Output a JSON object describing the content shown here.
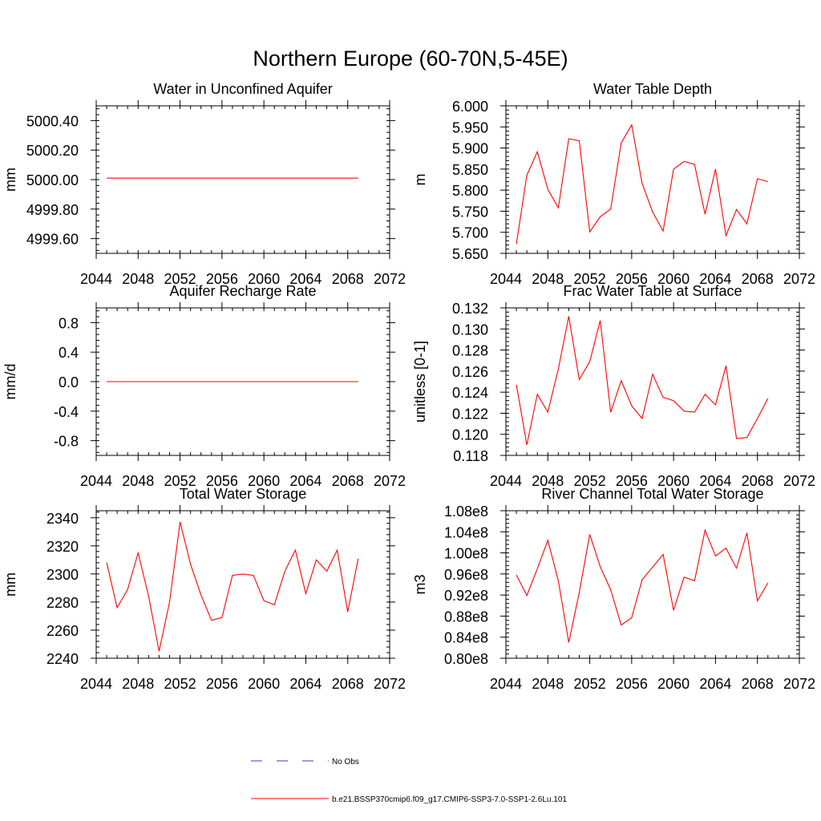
{
  "figure": {
    "title": "Northern Europe (60-70N,5-45E)"
  },
  "legend": {
    "obs_label": "No Obs",
    "model_label": "b.e21.BSSP370cmip6.f09_g17.CMIP6-SSP3-7.0-SSP1-2.6Lu.101",
    "obs_color": "#3b3bbf",
    "model_color": "#ff0000"
  },
  "chart_data": [
    {
      "type": "line",
      "title": "Water in Unconfined Aquifer",
      "ylabel": "mm",
      "xlim": [
        2044,
        2072
      ],
      "xticks": [
        2044,
        2048,
        2052,
        2056,
        2060,
        2064,
        2068,
        2072
      ],
      "ylim": [
        4999.5,
        5000.5
      ],
      "yticks": [
        4999.6,
        4999.8,
        5000.0,
        5000.2,
        5000.4
      ],
      "ytick_labels": [
        "4999.60",
        "4999.80",
        "5000.00",
        "5000.20",
        "5000.40"
      ],
      "x": [
        2045,
        2046,
        2047,
        2048,
        2049,
        2050,
        2051,
        2052,
        2053,
        2054,
        2055,
        2056,
        2057,
        2058,
        2059,
        2060,
        2061,
        2062,
        2063,
        2064,
        2065,
        2066,
        2067,
        2068,
        2069
      ],
      "values": [
        5000.01,
        5000.01,
        5000.01,
        5000.01,
        5000.01,
        5000.01,
        5000.01,
        5000.01,
        5000.01,
        5000.01,
        5000.01,
        5000.01,
        5000.01,
        5000.01,
        5000.01,
        5000.01,
        5000.01,
        5000.01,
        5000.01,
        5000.01,
        5000.01,
        5000.01,
        5000.01,
        5000.01,
        5000.01
      ]
    },
    {
      "type": "line",
      "title": "Water Table Depth",
      "ylabel": "m",
      "xlim": [
        2044,
        2072
      ],
      "xticks": [
        2044,
        2048,
        2052,
        2056,
        2060,
        2064,
        2068,
        2072
      ],
      "ylim": [
        5.65,
        6.0
      ],
      "yticks": [
        5.65,
        5.7,
        5.75,
        5.8,
        5.85,
        5.9,
        5.95,
        6.0
      ],
      "ytick_labels": [
        "5.650",
        "5.700",
        "5.750",
        "5.800",
        "5.850",
        "5.900",
        "5.950",
        "6.000"
      ],
      "x": [
        2045,
        2046,
        2047,
        2048,
        2049,
        2050,
        2051,
        2052,
        2053,
        2054,
        2055,
        2056,
        2057,
        2058,
        2059,
        2060,
        2061,
        2062,
        2063,
        2064,
        2065,
        2066,
        2067,
        2068,
        2069
      ],
      "values": [
        5.672,
        5.835,
        5.891,
        5.802,
        5.758,
        5.922,
        5.917,
        5.701,
        5.737,
        5.755,
        5.912,
        5.955,
        5.816,
        5.748,
        5.703,
        5.85,
        5.868,
        5.861,
        5.743,
        5.85,
        5.692,
        5.754,
        5.72,
        5.827,
        5.82
      ]
    },
    {
      "type": "line",
      "title": "Aquifer Recharge Rate",
      "ylabel": "mm/d",
      "xlim": [
        2044,
        2072
      ],
      "xticks": [
        2044,
        2048,
        2052,
        2056,
        2060,
        2064,
        2068,
        2072
      ],
      "ylim": [
        -1.0,
        1.0
      ],
      "yticks": [
        -0.8,
        -0.4,
        0.0,
        0.4,
        0.8
      ],
      "ytick_labels": [
        "-0.8",
        "-0.4",
        "0.0",
        "0.4",
        "0.8"
      ],
      "x": [
        2045,
        2046,
        2047,
        2048,
        2049,
        2050,
        2051,
        2052,
        2053,
        2054,
        2055,
        2056,
        2057,
        2058,
        2059,
        2060,
        2061,
        2062,
        2063,
        2064,
        2065,
        2066,
        2067,
        2068,
        2069
      ],
      "values": [
        0.0,
        0.0,
        0.0,
        0.0,
        0.0,
        0.0,
        0.0,
        0.0,
        0.0,
        0.0,
        0.0,
        0.0,
        0.0,
        0.0,
        0.0,
        0.0,
        0.0,
        0.0,
        0.0,
        0.0,
        0.0,
        0.0,
        0.0,
        0.0,
        0.0
      ]
    },
    {
      "type": "line",
      "title": "Frac Water Table at Surface",
      "ylabel": "unitless [0-1]",
      "xlim": [
        2044,
        2072
      ],
      "xticks": [
        2044,
        2048,
        2052,
        2056,
        2060,
        2064,
        2068,
        2072
      ],
      "ylim": [
        0.118,
        0.132
      ],
      "yticks": [
        0.118,
        0.12,
        0.122,
        0.124,
        0.126,
        0.128,
        0.13,
        0.132
      ],
      "ytick_labels": [
        "0.118",
        "0.120",
        "0.122",
        "0.124",
        "0.126",
        "0.128",
        "0.130",
        "0.132"
      ],
      "x": [
        2045,
        2046,
        2047,
        2048,
        2049,
        2050,
        2051,
        2052,
        2053,
        2054,
        2055,
        2056,
        2057,
        2058,
        2059,
        2060,
        2061,
        2062,
        2063,
        2064,
        2065,
        2066,
        2067,
        2068,
        2069
      ],
      "values": [
        0.1247,
        0.119,
        0.1238,
        0.1221,
        0.1262,
        0.1312,
        0.1252,
        0.1269,
        0.1308,
        0.1221,
        0.1251,
        0.1227,
        0.1215,
        0.1257,
        0.1235,
        0.1232,
        0.1222,
        0.1221,
        0.1238,
        0.1228,
        0.1265,
        0.1196,
        0.1197,
        0.1215,
        0.1234
      ]
    },
    {
      "type": "line",
      "title": "Total Water Storage",
      "ylabel": "mm",
      "xlim": [
        2044,
        2072
      ],
      "xticks": [
        2044,
        2048,
        2052,
        2056,
        2060,
        2064,
        2068,
        2072
      ],
      "ylim": [
        2240,
        2345
      ],
      "yticks": [
        2240,
        2260,
        2280,
        2300,
        2320,
        2340
      ],
      "ytick_labels": [
        "2240",
        "2260",
        "2280",
        "2300",
        "2320",
        "2340"
      ],
      "x": [
        2045,
        2046,
        2047,
        2048,
        2049,
        2050,
        2051,
        2052,
        2053,
        2054,
        2055,
        2056,
        2057,
        2058,
        2059,
        2060,
        2061,
        2062,
        2063,
        2064,
        2065,
        2066,
        2067,
        2068,
        2069
      ],
      "values": [
        2308,
        2276,
        2289,
        2315,
        2284,
        2245,
        2280,
        2337,
        2307,
        2285,
        2267,
        2269,
        2299,
        2300,
        2299,
        2281,
        2278,
        2302,
        2317,
        2286,
        2310,
        2302,
        2317,
        2273,
        2311
      ]
    },
    {
      "type": "line",
      "title": "River Channel Total Water Storage",
      "ylabel": "m3",
      "xlim": [
        2044,
        2072
      ],
      "xticks": [
        2044,
        2048,
        2052,
        2056,
        2060,
        2064,
        2068,
        2072
      ],
      "ylim": [
        80000000,
        108000000
      ],
      "yticks": [
        80000000,
        84000000,
        88000000,
        92000000,
        96000000,
        100000000,
        104000000,
        108000000
      ],
      "ytick_labels": [
        "0.80e8",
        "0.84e8",
        "0.88e8",
        "0.92e8",
        "0.96e8",
        "1.00e8",
        "1.04e8",
        "1.08e8"
      ],
      "x": [
        2045,
        2046,
        2047,
        2048,
        2049,
        2050,
        2051,
        2052,
        2053,
        2054,
        2055,
        2056,
        2057,
        2058,
        2059,
        2060,
        2061,
        2062,
        2063,
        2064,
        2065,
        2066,
        2067,
        2068,
        2069
      ],
      "values": [
        95800000,
        91900000,
        97000000,
        102400000,
        94700000,
        83000000,
        92500000,
        103500000,
        97400000,
        93000000,
        86300000,
        87700000,
        94900000,
        97300000,
        99700000,
        89100000,
        95400000,
        94700000,
        104300000,
        99400000,
        100900000,
        97100000,
        103800000,
        90900000,
        94300000
      ]
    }
  ]
}
